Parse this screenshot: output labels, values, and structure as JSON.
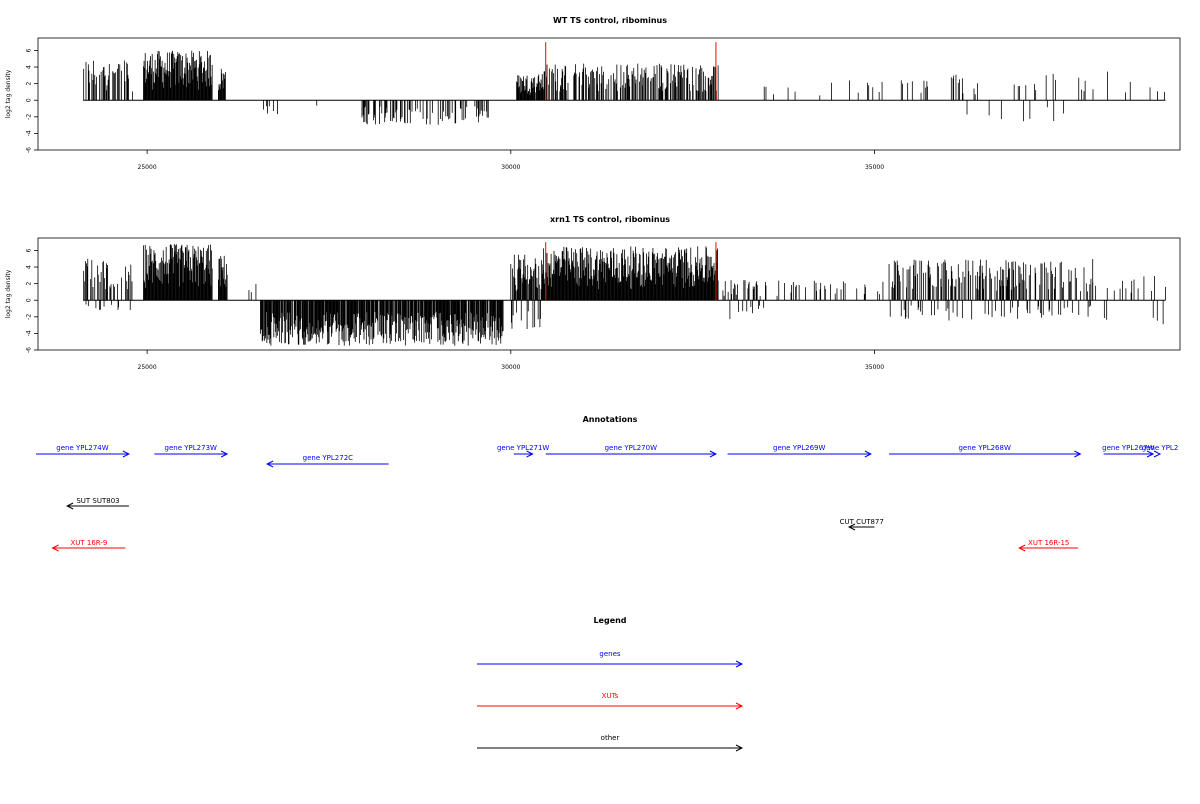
{
  "colors": {
    "gene": "#0000ff",
    "xut": "#ff0000",
    "other": "#000000",
    "marker": "#ff0000",
    "bar": "#000000"
  },
  "chart_data": [
    {
      "type": "bar",
      "title": "WT TS control, ribominus",
      "ylabel": "log2 tag density",
      "xlim": [
        23500,
        39200
      ],
      "ylim": [
        -6,
        7.5
      ],
      "xticks": [
        25000,
        30000,
        35000
      ],
      "xtick_labels": [
        "25000",
        "30000",
        "35000"
      ],
      "yticks": [
        -6,
        -4,
        -2,
        0,
        2,
        4,
        6
      ],
      "ytick_labels": [
        "-6",
        "-4",
        "-2",
        "0",
        "2",
        "4",
        "6"
      ],
      "markers_x": [
        30480,
        32820
      ],
      "marker_top": 7.0,
      "density_profile": [
        {
          "from": 24120,
          "to": 24800,
          "max_pos": 5,
          "max_neg": 0,
          "density": 0.45
        },
        {
          "from": 24950,
          "to": 25900,
          "max_pos": 6,
          "max_neg": 0,
          "density": 1.0
        },
        {
          "from": 25980,
          "to": 26080,
          "max_pos": 4,
          "max_neg": 0,
          "density": 1.0
        },
        {
          "from": 26600,
          "to": 26800,
          "max_pos": 0,
          "max_neg": -2.5,
          "density": 0.2
        },
        {
          "from": 27300,
          "to": 27350,
          "max_pos": 0,
          "max_neg": -1,
          "density": 0.3
        },
        {
          "from": 27850,
          "to": 29700,
          "max_pos": 0,
          "max_neg": -3,
          "density": 0.35
        },
        {
          "from": 30080,
          "to": 30450,
          "max_pos": 3.2,
          "max_neg": 0,
          "density": 0.9
        },
        {
          "from": 30450,
          "to": 32850,
          "max_pos": 4.5,
          "max_neg": 0,
          "density": 0.55
        },
        {
          "from": 32900,
          "to": 34000,
          "max_pos": 2,
          "max_neg": 0,
          "density": 0.06
        },
        {
          "from": 34000,
          "to": 36000,
          "max_pos": 2.5,
          "max_neg": 0,
          "density": 0.07
        },
        {
          "from": 36000,
          "to": 37900,
          "max_pos": 3.2,
          "max_neg": -2.8,
          "density": 0.12
        },
        {
          "from": 37900,
          "to": 39000,
          "max_pos": 3.5,
          "max_neg": 0,
          "density": 0.05
        }
      ]
    },
    {
      "type": "bar",
      "title": "xrn1 TS control, ribominus",
      "ylabel": "log2 tag density",
      "xlim": [
        23500,
        39200
      ],
      "ylim": [
        -6,
        7.5
      ],
      "xticks": [
        25000,
        30000,
        35000
      ],
      "xtick_labels": [
        "25000",
        "30000",
        "35000"
      ],
      "yticks": [
        -6,
        -4,
        -2,
        0,
        2,
        4,
        6
      ],
      "ytick_labels": [
        "-6",
        "-4",
        "-2",
        "0",
        "2",
        "4",
        "6"
      ],
      "markers_x": [
        30480,
        32820
      ],
      "marker_top": 7.0,
      "density_profile": [
        {
          "from": 24120,
          "to": 24800,
          "max_pos": 5,
          "max_neg": -1.2,
          "density": 0.6
        },
        {
          "from": 24950,
          "to": 25900,
          "max_pos": 6.8,
          "max_neg": 0,
          "density": 1.0
        },
        {
          "from": 25980,
          "to": 26100,
          "max_pos": 5.5,
          "max_neg": 0,
          "density": 1.0
        },
        {
          "from": 26400,
          "to": 26500,
          "max_pos": 2,
          "max_neg": 0,
          "density": 0.3
        },
        {
          "from": 26550,
          "to": 29900,
          "max_pos": 0.5,
          "max_neg": -5.5,
          "density": 0.9
        },
        {
          "from": 30000,
          "to": 30450,
          "max_pos": 5.5,
          "max_neg": -3.5,
          "density": 1.0
        },
        {
          "from": 30450,
          "to": 32850,
          "max_pos": 6.5,
          "max_neg": 0,
          "density": 1.0
        },
        {
          "from": 32900,
          "to": 33500,
          "max_pos": 2.5,
          "max_neg": -2.5,
          "density": 0.35
        },
        {
          "from": 33500,
          "to": 35200,
          "max_pos": 2.5,
          "max_neg": 0,
          "density": 0.15
        },
        {
          "from": 35200,
          "to": 38000,
          "max_pos": 5,
          "max_neg": -2.5,
          "density": 0.55
        },
        {
          "from": 38000,
          "to": 39000,
          "max_pos": 3,
          "max_neg": -3,
          "density": 0.15
        }
      ]
    }
  ],
  "annotations": {
    "title": "Annotations",
    "genes": [
      {
        "label": "gene YPL274W",
        "from": 23400,
        "to": 24750,
        "dir": "right",
        "row": 0
      },
      {
        "label": "gene YPL273W",
        "from": 25100,
        "to": 26100,
        "dir": "right",
        "row": 0
      },
      {
        "label": "gene YPL272C",
        "from": 26650,
        "to": 28320,
        "dir": "left",
        "row": 1
      },
      {
        "label": "gene YPL271W",
        "from": 30040,
        "to": 30300,
        "dir": "right",
        "row": 0
      },
      {
        "label": "gene YPL270W",
        "from": 30480,
        "to": 32820,
        "dir": "right",
        "row": 0
      },
      {
        "label": "gene YPL269W",
        "from": 32980,
        "to": 34950,
        "dir": "right",
        "row": 0
      },
      {
        "label": "gene YPL268W",
        "from": 35200,
        "to": 37830,
        "dir": "right",
        "row": 0
      },
      {
        "label": "gene YPL267W",
        "from": 38150,
        "to": 38830,
        "dir": "right",
        "row": 0
      },
      {
        "label": "gene YPL2",
        "from": 39130,
        "to": 39800,
        "dir": "right",
        "row": 0
      }
    ],
    "others": [
      {
        "label": "SUT SUT803",
        "from": 23900,
        "to": 24750,
        "dir": "left"
      },
      {
        "label": "CUT CUT877",
        "from": 34650,
        "to": 35000,
        "dir": "left"
      }
    ],
    "xuts": [
      {
        "label": "XUT 16R-9",
        "from": 23700,
        "to": 24700,
        "dir": "left"
      },
      {
        "label": "XUT 16R-15",
        "from": 36990,
        "to": 37800,
        "dir": "left"
      }
    ]
  },
  "legend": {
    "title": "Legend",
    "items": [
      {
        "label": "genes",
        "kind": "gene"
      },
      {
        "label": "XUTs",
        "kind": "xut"
      },
      {
        "label": "other",
        "kind": "other"
      }
    ]
  }
}
